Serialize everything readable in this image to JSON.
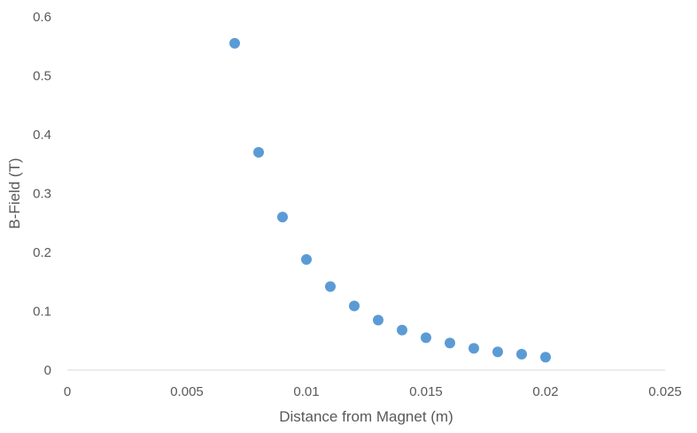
{
  "chart_data": {
    "type": "scatter",
    "title": "",
    "xlabel": "Distance from Magnet (m)",
    "ylabel": "B-Field (T)",
    "xlim": [
      0,
      0.025
    ],
    "ylim": [
      0,
      0.6
    ],
    "grid": false,
    "legend": "none",
    "x_ticks": [
      "0",
      "0.005",
      "0.01",
      "0.015",
      "0.02",
      "0.025"
    ],
    "y_ticks": [
      "0",
      "0.1",
      "0.2",
      "0.3",
      "0.4",
      "0.5",
      "0.6"
    ],
    "x_tick_values": [
      0,
      0.005,
      0.01,
      0.015,
      0.02,
      0.025
    ],
    "y_tick_values": [
      0,
      0.1,
      0.2,
      0.3,
      0.4,
      0.5,
      0.6
    ],
    "series": [
      {
        "name": "B-Field",
        "color": "#5b9bd5",
        "points": [
          {
            "x": 0.007,
            "y": 0.555
          },
          {
            "x": 0.008,
            "y": 0.37
          },
          {
            "x": 0.009,
            "y": 0.26
          },
          {
            "x": 0.01,
            "y": 0.188
          },
          {
            "x": 0.011,
            "y": 0.142
          },
          {
            "x": 0.012,
            "y": 0.109
          },
          {
            "x": 0.013,
            "y": 0.085
          },
          {
            "x": 0.014,
            "y": 0.068
          },
          {
            "x": 0.015,
            "y": 0.055
          },
          {
            "x": 0.016,
            "y": 0.046
          },
          {
            "x": 0.017,
            "y": 0.037
          },
          {
            "x": 0.018,
            "y": 0.031
          },
          {
            "x": 0.019,
            "y": 0.027
          },
          {
            "x": 0.02,
            "y": 0.022
          }
        ]
      }
    ]
  }
}
